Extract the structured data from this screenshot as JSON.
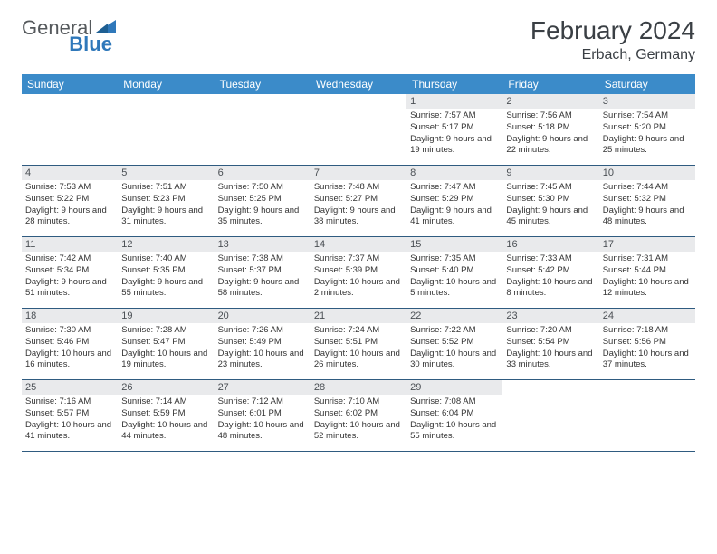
{
  "logo": {
    "brand_a": "General",
    "brand_b": "Blue"
  },
  "title": "February 2024",
  "location": "Erbach, Germany",
  "colors": {
    "header_bg": "#3b8bc9",
    "row_border": "#2f5b80",
    "daynum_bg": "#e9eaec",
    "logo_blue": "#2f78ba",
    "text": "#333333"
  },
  "days_of_week": [
    "Sunday",
    "Monday",
    "Tuesday",
    "Wednesday",
    "Thursday",
    "Friday",
    "Saturday"
  ],
  "weeks": [
    [
      null,
      null,
      null,
      null,
      {
        "n": "1",
        "sr": "7:57 AM",
        "ss": "5:17 PM",
        "dl": "9 hours and 19 minutes."
      },
      {
        "n": "2",
        "sr": "7:56 AM",
        "ss": "5:18 PM",
        "dl": "9 hours and 22 minutes."
      },
      {
        "n": "3",
        "sr": "7:54 AM",
        "ss": "5:20 PM",
        "dl": "9 hours and 25 minutes."
      }
    ],
    [
      {
        "n": "4",
        "sr": "7:53 AM",
        "ss": "5:22 PM",
        "dl": "9 hours and 28 minutes."
      },
      {
        "n": "5",
        "sr": "7:51 AM",
        "ss": "5:23 PM",
        "dl": "9 hours and 31 minutes."
      },
      {
        "n": "6",
        "sr": "7:50 AM",
        "ss": "5:25 PM",
        "dl": "9 hours and 35 minutes."
      },
      {
        "n": "7",
        "sr": "7:48 AM",
        "ss": "5:27 PM",
        "dl": "9 hours and 38 minutes."
      },
      {
        "n": "8",
        "sr": "7:47 AM",
        "ss": "5:29 PM",
        "dl": "9 hours and 41 minutes."
      },
      {
        "n": "9",
        "sr": "7:45 AM",
        "ss": "5:30 PM",
        "dl": "9 hours and 45 minutes."
      },
      {
        "n": "10",
        "sr": "7:44 AM",
        "ss": "5:32 PM",
        "dl": "9 hours and 48 minutes."
      }
    ],
    [
      {
        "n": "11",
        "sr": "7:42 AM",
        "ss": "5:34 PM",
        "dl": "9 hours and 51 minutes."
      },
      {
        "n": "12",
        "sr": "7:40 AM",
        "ss": "5:35 PM",
        "dl": "9 hours and 55 minutes."
      },
      {
        "n": "13",
        "sr": "7:38 AM",
        "ss": "5:37 PM",
        "dl": "9 hours and 58 minutes."
      },
      {
        "n": "14",
        "sr": "7:37 AM",
        "ss": "5:39 PM",
        "dl": "10 hours and 2 minutes."
      },
      {
        "n": "15",
        "sr": "7:35 AM",
        "ss": "5:40 PM",
        "dl": "10 hours and 5 minutes."
      },
      {
        "n": "16",
        "sr": "7:33 AM",
        "ss": "5:42 PM",
        "dl": "10 hours and 8 minutes."
      },
      {
        "n": "17",
        "sr": "7:31 AM",
        "ss": "5:44 PM",
        "dl": "10 hours and 12 minutes."
      }
    ],
    [
      {
        "n": "18",
        "sr": "7:30 AM",
        "ss": "5:46 PM",
        "dl": "10 hours and 16 minutes."
      },
      {
        "n": "19",
        "sr": "7:28 AM",
        "ss": "5:47 PM",
        "dl": "10 hours and 19 minutes."
      },
      {
        "n": "20",
        "sr": "7:26 AM",
        "ss": "5:49 PM",
        "dl": "10 hours and 23 minutes."
      },
      {
        "n": "21",
        "sr": "7:24 AM",
        "ss": "5:51 PM",
        "dl": "10 hours and 26 minutes."
      },
      {
        "n": "22",
        "sr": "7:22 AM",
        "ss": "5:52 PM",
        "dl": "10 hours and 30 minutes."
      },
      {
        "n": "23",
        "sr": "7:20 AM",
        "ss": "5:54 PM",
        "dl": "10 hours and 33 minutes."
      },
      {
        "n": "24",
        "sr": "7:18 AM",
        "ss": "5:56 PM",
        "dl": "10 hours and 37 minutes."
      }
    ],
    [
      {
        "n": "25",
        "sr": "7:16 AM",
        "ss": "5:57 PM",
        "dl": "10 hours and 41 minutes."
      },
      {
        "n": "26",
        "sr": "7:14 AM",
        "ss": "5:59 PM",
        "dl": "10 hours and 44 minutes."
      },
      {
        "n": "27",
        "sr": "7:12 AM",
        "ss": "6:01 PM",
        "dl": "10 hours and 48 minutes."
      },
      {
        "n": "28",
        "sr": "7:10 AM",
        "ss": "6:02 PM",
        "dl": "10 hours and 52 minutes."
      },
      {
        "n": "29",
        "sr": "7:08 AM",
        "ss": "6:04 PM",
        "dl": "10 hours and 55 minutes."
      },
      null,
      null
    ]
  ],
  "labels": {
    "sunrise": "Sunrise: ",
    "sunset": "Sunset: ",
    "daylight": "Daylight: "
  }
}
